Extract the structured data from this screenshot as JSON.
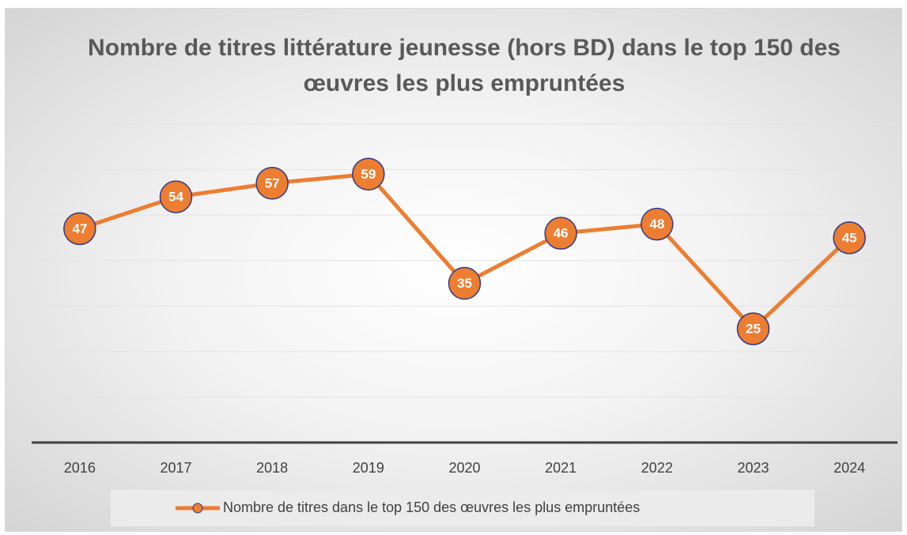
{
  "chart_data": {
    "type": "line",
    "title": "Nombre de titres littérature jeunesse (hors BD) dans le top 150 des œuvres les plus empruntées",
    "categories": [
      "2016",
      "2017",
      "2018",
      "2019",
      "2020",
      "2021",
      "2022",
      "2023",
      "2024"
    ],
    "series": [
      {
        "name": "Nombre de titres dans le top 150 des œuvres les plus empruntées",
        "color": "#ed7d31",
        "values": [
          47,
          54,
          57,
          59,
          35,
          46,
          48,
          25,
          45
        ]
      }
    ],
    "ylim": [
      0,
      70
    ],
    "yticks": [
      0,
      10,
      20,
      30,
      40,
      50,
      60,
      70
    ],
    "grid": true,
    "legend": "bottom"
  }
}
